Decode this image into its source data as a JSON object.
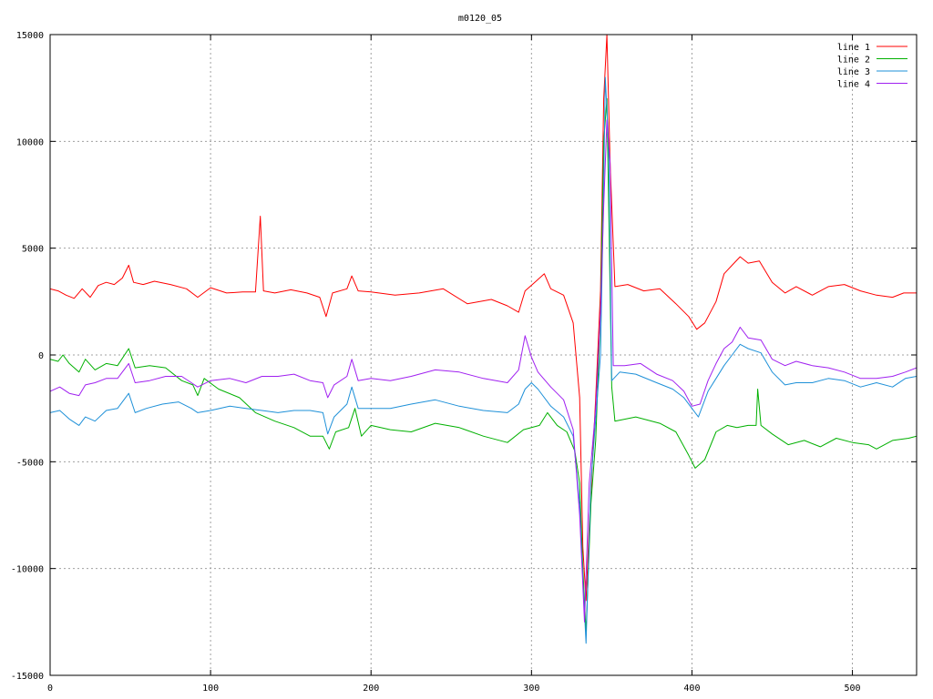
{
  "chart_data": {
    "type": "line",
    "title": "m0120_05",
    "xlabel": "",
    "ylabel": "",
    "xlim": [
      0,
      540
    ],
    "ylim": [
      -15000,
      15000
    ],
    "xticks": [
      0,
      100,
      200,
      300,
      400,
      500
    ],
    "yticks": [
      -15000,
      -10000,
      -5000,
      0,
      5000,
      10000,
      15000
    ],
    "grid": true,
    "legend_position": "top-right",
    "series": [
      {
        "name": "line 1",
        "color": "#ff0000",
        "points": [
          [
            0,
            3100
          ],
          [
            5,
            3000
          ],
          [
            10,
            2800
          ],
          [
            15,
            2650
          ],
          [
            20,
            3100
          ],
          [
            25,
            2700
          ],
          [
            30,
            3250
          ],
          [
            35,
            3400
          ],
          [
            40,
            3300
          ],
          [
            45,
            3600
          ],
          [
            49,
            4200
          ],
          [
            52,
            3400
          ],
          [
            58,
            3300
          ],
          [
            65,
            3450
          ],
          [
            75,
            3300
          ],
          [
            85,
            3100
          ],
          [
            92,
            2700
          ],
          [
            100,
            3150
          ],
          [
            110,
            2900
          ],
          [
            120,
            2950
          ],
          [
            128,
            2950
          ],
          [
            131,
            6500
          ],
          [
            133,
            3000
          ],
          [
            140,
            2900
          ],
          [
            150,
            3050
          ],
          [
            160,
            2900
          ],
          [
            168,
            2700
          ],
          [
            172,
            1800
          ],
          [
            176,
            2900
          ],
          [
            185,
            3100
          ],
          [
            188,
            3700
          ],
          [
            192,
            3000
          ],
          [
            200,
            2950
          ],
          [
            215,
            2800
          ],
          [
            230,
            2900
          ],
          [
            245,
            3100
          ],
          [
            260,
            2400
          ],
          [
            275,
            2600
          ],
          [
            285,
            2300
          ],
          [
            292,
            2000
          ],
          [
            296,
            3000
          ],
          [
            302,
            3400
          ],
          [
            308,
            3800
          ],
          [
            312,
            3100
          ],
          [
            320,
            2800
          ],
          [
            326,
            1500
          ],
          [
            330,
            -2000
          ],
          [
            332,
            -9000
          ],
          [
            334,
            -11500
          ],
          [
            336,
            -8000
          ],
          [
            340,
            -2000
          ],
          [
            343,
            3000
          ],
          [
            345,
            12000
          ],
          [
            347,
            15000
          ],
          [
            349,
            9000
          ],
          [
            352,
            3200
          ],
          [
            360,
            3300
          ],
          [
            370,
            3000
          ],
          [
            380,
            3100
          ],
          [
            390,
            2400
          ],
          [
            398,
            1800
          ],
          [
            403,
            1200
          ],
          [
            408,
            1500
          ],
          [
            415,
            2500
          ],
          [
            420,
            3800
          ],
          [
            425,
            4200
          ],
          [
            430,
            4600
          ],
          [
            435,
            4300
          ],
          [
            442,
            4400
          ],
          [
            450,
            3400
          ],
          [
            458,
            2900
          ],
          [
            465,
            3200
          ],
          [
            475,
            2800
          ],
          [
            485,
            3200
          ],
          [
            495,
            3300
          ],
          [
            505,
            3000
          ],
          [
            515,
            2800
          ],
          [
            525,
            2700
          ],
          [
            532,
            2900
          ],
          [
            540,
            2900
          ]
        ]
      },
      {
        "name": "line 2",
        "color": "#00b000",
        "points": [
          [
            0,
            -200
          ],
          [
            5,
            -300
          ],
          [
            8,
            0
          ],
          [
            12,
            -400
          ],
          [
            18,
            -800
          ],
          [
            22,
            -200
          ],
          [
            28,
            -700
          ],
          [
            35,
            -400
          ],
          [
            42,
            -500
          ],
          [
            49,
            300
          ],
          [
            53,
            -600
          ],
          [
            62,
            -500
          ],
          [
            72,
            -600
          ],
          [
            82,
            -1200
          ],
          [
            89,
            -1400
          ],
          [
            92,
            -1900
          ],
          [
            96,
            -1100
          ],
          [
            105,
            -1600
          ],
          [
            118,
            -2000
          ],
          [
            128,
            -2700
          ],
          [
            140,
            -3100
          ],
          [
            152,
            -3400
          ],
          [
            162,
            -3800
          ],
          [
            170,
            -3800
          ],
          [
            174,
            -4400
          ],
          [
            178,
            -3600
          ],
          [
            186,
            -3400
          ],
          [
            190,
            -2500
          ],
          [
            194,
            -3800
          ],
          [
            200,
            -3300
          ],
          [
            212,
            -3500
          ],
          [
            225,
            -3600
          ],
          [
            240,
            -3200
          ],
          [
            255,
            -3400
          ],
          [
            270,
            -3800
          ],
          [
            285,
            -4100
          ],
          [
            295,
            -3500
          ],
          [
            305,
            -3300
          ],
          [
            310,
            -2700
          ],
          [
            316,
            -3300
          ],
          [
            322,
            -3600
          ],
          [
            327,
            -4500
          ],
          [
            330,
            -6000
          ],
          [
            332,
            -10000
          ],
          [
            334,
            -13000
          ],
          [
            337,
            -7000
          ],
          [
            340,
            -4000
          ],
          [
            343,
            2000
          ],
          [
            345,
            10000
          ],
          [
            347,
            12000
          ],
          [
            349,
            3000
          ],
          [
            350,
            -1500
          ],
          [
            352,
            -3100
          ],
          [
            365,
            -2900
          ],
          [
            380,
            -3200
          ],
          [
            390,
            -3600
          ],
          [
            398,
            -4700
          ],
          [
            402,
            -5300
          ],
          [
            408,
            -4900
          ],
          [
            415,
            -3600
          ],
          [
            422,
            -3300
          ],
          [
            428,
            -3400
          ],
          [
            435,
            -3300
          ],
          [
            440,
            -3300
          ],
          [
            441,
            -1600
          ],
          [
            443,
            -3300
          ],
          [
            450,
            -3700
          ],
          [
            460,
            -4200
          ],
          [
            470,
            -4000
          ],
          [
            480,
            -4300
          ],
          [
            490,
            -3900
          ],
          [
            500,
            -4100
          ],
          [
            510,
            -4200
          ],
          [
            515,
            -4400
          ],
          [
            525,
            -4000
          ],
          [
            535,
            -3900
          ],
          [
            540,
            -3800
          ]
        ]
      },
      {
        "name": "line 3",
        "color": "#1e90d8",
        "points": [
          [
            0,
            -2700
          ],
          [
            6,
            -2600
          ],
          [
            12,
            -3000
          ],
          [
            18,
            -3300
          ],
          [
            22,
            -2900
          ],
          [
            28,
            -3100
          ],
          [
            35,
            -2600
          ],
          [
            42,
            -2500
          ],
          [
            49,
            -1800
          ],
          [
            53,
            -2700
          ],
          [
            60,
            -2500
          ],
          [
            70,
            -2300
          ],
          [
            80,
            -2200
          ],
          [
            88,
            -2500
          ],
          [
            92,
            -2700
          ],
          [
            100,
            -2600
          ],
          [
            112,
            -2400
          ],
          [
            122,
            -2500
          ],
          [
            132,
            -2600
          ],
          [
            142,
            -2700
          ],
          [
            152,
            -2600
          ],
          [
            162,
            -2600
          ],
          [
            170,
            -2700
          ],
          [
            173,
            -3700
          ],
          [
            177,
            -2900
          ],
          [
            185,
            -2300
          ],
          [
            188,
            -1500
          ],
          [
            192,
            -2500
          ],
          [
            200,
            -2500
          ],
          [
            212,
            -2500
          ],
          [
            225,
            -2300
          ],
          [
            240,
            -2100
          ],
          [
            255,
            -2400
          ],
          [
            270,
            -2600
          ],
          [
            285,
            -2700
          ],
          [
            292,
            -2300
          ],
          [
            296,
            -1600
          ],
          [
            300,
            -1300
          ],
          [
            304,
            -1600
          ],
          [
            312,
            -2400
          ],
          [
            320,
            -2900
          ],
          [
            326,
            -3800
          ],
          [
            330,
            -7000
          ],
          [
            332,
            -10500
          ],
          [
            334,
            -13500
          ],
          [
            337,
            -6000
          ],
          [
            340,
            -3000
          ],
          [
            343,
            0
          ],
          [
            345,
            8000
          ],
          [
            346,
            13000
          ],
          [
            348,
            10000
          ],
          [
            350,
            -1200
          ],
          [
            355,
            -800
          ],
          [
            365,
            -900
          ],
          [
            378,
            -1300
          ],
          [
            388,
            -1600
          ],
          [
            395,
            -2000
          ],
          [
            400,
            -2500
          ],
          [
            404,
            -2900
          ],
          [
            410,
            -1700
          ],
          [
            415,
            -1100
          ],
          [
            420,
            -500
          ],
          [
            425,
            0
          ],
          [
            430,
            500
          ],
          [
            435,
            300
          ],
          [
            443,
            100
          ],
          [
            450,
            -800
          ],
          [
            458,
            -1400
          ],
          [
            465,
            -1300
          ],
          [
            475,
            -1300
          ],
          [
            485,
            -1100
          ],
          [
            495,
            -1200
          ],
          [
            505,
            -1500
          ],
          [
            515,
            -1300
          ],
          [
            525,
            -1500
          ],
          [
            533,
            -1100
          ],
          [
            540,
            -1000
          ]
        ]
      },
      {
        "name": "line 4",
        "color": "#a020f0",
        "points": [
          [
            0,
            -1700
          ],
          [
            6,
            -1500
          ],
          [
            12,
            -1800
          ],
          [
            18,
            -1900
          ],
          [
            22,
            -1400
          ],
          [
            28,
            -1300
          ],
          [
            35,
            -1100
          ],
          [
            42,
            -1100
          ],
          [
            49,
            -400
          ],
          [
            53,
            -1300
          ],
          [
            62,
            -1200
          ],
          [
            72,
            -1000
          ],
          [
            82,
            -1000
          ],
          [
            88,
            -1300
          ],
          [
            92,
            -1500
          ],
          [
            100,
            -1200
          ],
          [
            112,
            -1100
          ],
          [
            122,
            -1300
          ],
          [
            132,
            -1000
          ],
          [
            142,
            -1000
          ],
          [
            152,
            -900
          ],
          [
            162,
            -1200
          ],
          [
            170,
            -1300
          ],
          [
            173,
            -2000
          ],
          [
            177,
            -1400
          ],
          [
            185,
            -1000
          ],
          [
            188,
            -200
          ],
          [
            192,
            -1200
          ],
          [
            200,
            -1100
          ],
          [
            212,
            -1200
          ],
          [
            225,
            -1000
          ],
          [
            240,
            -700
          ],
          [
            255,
            -800
          ],
          [
            270,
            -1100
          ],
          [
            285,
            -1300
          ],
          [
            292,
            -700
          ],
          [
            296,
            900
          ],
          [
            300,
            -100
          ],
          [
            304,
            -800
          ],
          [
            312,
            -1500
          ],
          [
            320,
            -2100
          ],
          [
            326,
            -3500
          ],
          [
            330,
            -7500
          ],
          [
            333,
            -12500
          ],
          [
            336,
            -6000
          ],
          [
            340,
            -2500
          ],
          [
            343,
            2000
          ],
          [
            345,
            7000
          ],
          [
            347,
            11000
          ],
          [
            349,
            9000
          ],
          [
            351,
            -500
          ],
          [
            358,
            -500
          ],
          [
            368,
            -400
          ],
          [
            378,
            -900
          ],
          [
            388,
            -1200
          ],
          [
            395,
            -1700
          ],
          [
            400,
            -2400
          ],
          [
            405,
            -2300
          ],
          [
            410,
            -1200
          ],
          [
            415,
            -400
          ],
          [
            420,
            300
          ],
          [
            425,
            600
          ],
          [
            430,
            1300
          ],
          [
            435,
            800
          ],
          [
            443,
            700
          ],
          [
            450,
            -200
          ],
          [
            458,
            -500
          ],
          [
            465,
            -300
          ],
          [
            475,
            -500
          ],
          [
            485,
            -600
          ],
          [
            495,
            -800
          ],
          [
            505,
            -1100
          ],
          [
            515,
            -1100
          ],
          [
            525,
            -1000
          ],
          [
            533,
            -800
          ],
          [
            540,
            -600
          ]
        ]
      }
    ]
  }
}
